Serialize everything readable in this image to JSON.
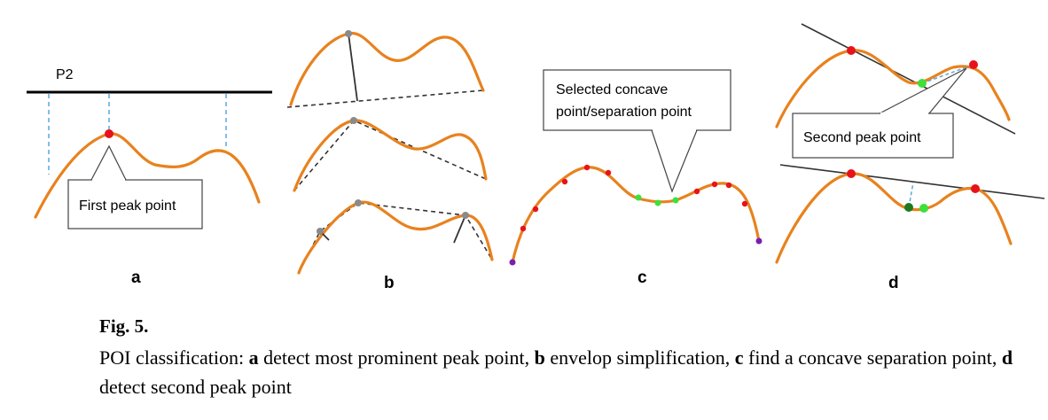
{
  "panels": {
    "a": {
      "letter": "a",
      "line_label": "P2",
      "callout": "First peak point"
    },
    "b": {
      "letter": "b"
    },
    "c": {
      "letter": "c",
      "callout_line1": "Selected concave",
      "callout_line2": "point/separation point"
    },
    "d": {
      "letter": "d",
      "callout": "Second peak point"
    }
  },
  "colors": {
    "curve": "#E8821E",
    "peak": "#E8121A",
    "concave": "#3EE03A",
    "concave_dark": "#1E7A1E",
    "end_point": "#7A1FB0",
    "vertex": "#8A8A8A",
    "guide": "#5BA7D9"
  },
  "caption": {
    "label": "Fig. 5.",
    "intro": "POI classification: ",
    "k1": "a",
    "t1": " detect most prominent peak point, ",
    "k2": "b",
    "t2": " envelop simplification, ",
    "k3": "c",
    "t3": " find a concave separation point, ",
    "k4": "d",
    "t4": " detect second peak point"
  }
}
